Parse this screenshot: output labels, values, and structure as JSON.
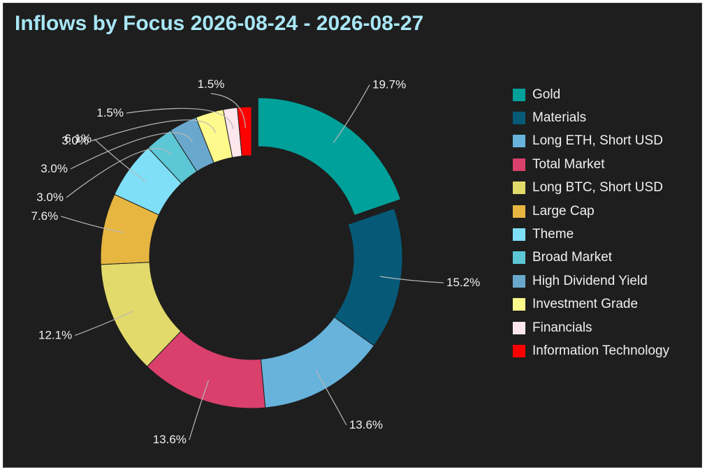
{
  "title": "Inflows by Focus 2026-08-24 - 2026-08-27",
  "chart_data": {
    "type": "pie",
    "style": "donut",
    "title": "Inflows by Focus 2026-08-24 - 2026-08-27",
    "legend_position": "right",
    "start_angle_deg": 0,
    "direction": "clockwise",
    "exploded": "Gold",
    "slices": [
      {
        "label": "Gold",
        "value": 19.7,
        "display": "19.7%",
        "color": "#00a19a"
      },
      {
        "label": "Materials",
        "value": 15.2,
        "display": "15.2%",
        "color": "#065a78"
      },
      {
        "label": "Long ETH, Short USD",
        "value": 13.6,
        "display": "13.6%",
        "color": "#67b3dc"
      },
      {
        "label": "Total Market",
        "value": 13.6,
        "display": "13.6%",
        "color": "#d9406b"
      },
      {
        "label": "Long BTC, Short USD",
        "value": 12.1,
        "display": "12.1%",
        "color": "#e2da6a"
      },
      {
        "label": "Large Cap",
        "value": 7.6,
        "display": "7.6%",
        "color": "#e6b641"
      },
      {
        "label": "Theme",
        "value": 6.1,
        "display": "6.1%",
        "color": "#7fdff7"
      },
      {
        "label": "Broad Market",
        "value": 3.0,
        "display": "3.0%",
        "color": "#5cc8d6"
      },
      {
        "label": "High Dividend Yield",
        "value": 3.0,
        "display": "3.0%",
        "color": "#69a8cc"
      },
      {
        "label": "Investment Grade",
        "value": 3.0,
        "display": "3.0%",
        "color": "#fffa8c"
      },
      {
        "label": "Financials",
        "value": 1.5,
        "display": "1.5%",
        "color": "#fde6ec"
      },
      {
        "label": "Information Technology",
        "value": 1.5,
        "display": "1.5%",
        "color": "#ff0000"
      }
    ]
  }
}
